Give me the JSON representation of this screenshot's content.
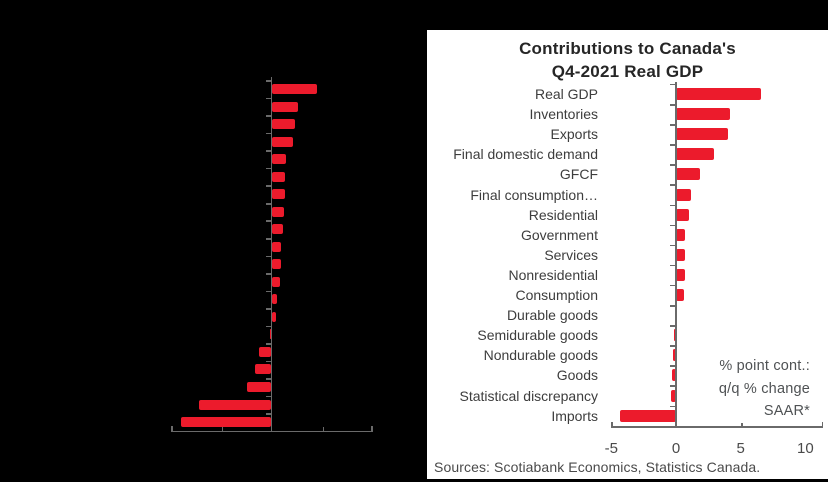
{
  "window": {
    "page_background": "#000000",
    "panel_background": "#ffffff"
  },
  "colors": {
    "bar_red": "#EC1B2C",
    "axis_gray": "#6a6a6a",
    "title_text": "#262626",
    "label_text": "#3d3d3d",
    "tick_text": "#4a4a4a",
    "annotation_text": "#4f5254",
    "source_text": "#4a4a4a"
  },
  "right_chart": {
    "title_line1": "Contributions to Canada's",
    "title_line2": "Q4-2021 Real GDP",
    "annotation_line1": "% point cont.:",
    "annotation_line2": "q/q % change",
    "annotation_line3": "SAAR*",
    "source": "Sources: Scotiabank Economics, Statistics Canada."
  },
  "chart_data": [
    {
      "type": "bar",
      "orientation": "horizontal",
      "title": "",
      "labels_legible": false,
      "values": [
        4.5,
        2.6,
        2.3,
        2.1,
        1.4,
        1.3,
        1.3,
        1.2,
        1.15,
        0.9,
        0.95,
        0.85,
        0.5,
        0.4,
        -0.15,
        -1.25,
        -1.6,
        -2.4,
        -7.1,
        -8.9
      ],
      "xlim": [
        -10,
        10
      ],
      "x_ticks": [
        -10,
        -5,
        0,
        5,
        10
      ],
      "x_tick_labels_visible": false,
      "grid": false
    },
    {
      "type": "bar",
      "orientation": "horizontal",
      "title": "Contributions to Canada's Q4-2021 Real GDP",
      "categories": [
        "Real GDP",
        "Inventories",
        "Exports",
        "Final domestic demand",
        "GFCF",
        "Final consumption…",
        "Residential",
        "Government",
        "Services",
        "Nonresidential",
        "Consumption",
        "Durable goods",
        "Semidurable goods",
        "Nondurable goods",
        "Goods",
        "Statistical discrepancy",
        "Imports"
      ],
      "values": [
        6.6,
        4.2,
        4.0,
        2.9,
        1.85,
        1.15,
        1.0,
        0.7,
        0.7,
        0.7,
        0.65,
        -0.05,
        -0.15,
        -0.25,
        -0.3,
        -0.4,
        -4.3
      ],
      "xlim": [
        -5,
        11.3
      ],
      "x_ticks": [
        -5,
        0,
        5,
        10
      ],
      "xlabel": "",
      "ylabel": "",
      "grid": false,
      "legend": "none",
      "annotation": [
        "% point cont.:",
        "q/q % change",
        "SAAR*"
      ],
      "source": "Sources: Scotiabank Economics, Statistics Canada."
    }
  ]
}
